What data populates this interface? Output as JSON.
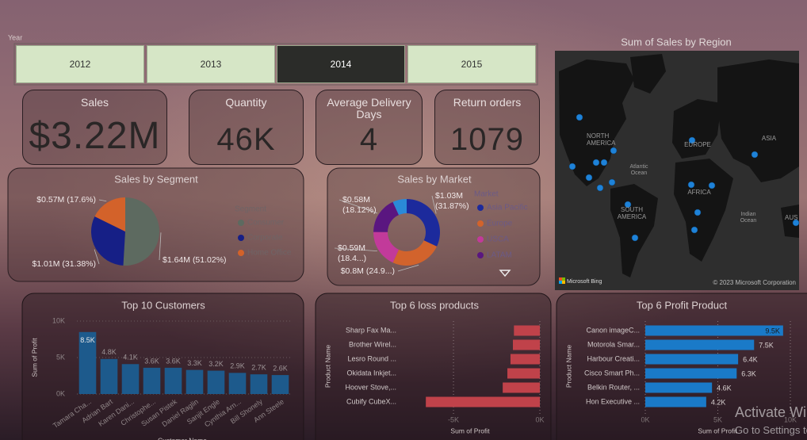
{
  "slicer": {
    "label": "Year",
    "options": [
      "2012",
      "2013",
      "2014",
      "2015"
    ],
    "selected": "2014"
  },
  "cards": [
    {
      "title": "Sales",
      "value": "$3.22M"
    },
    {
      "title": "Quantity",
      "value": "46K"
    },
    {
      "title": "Average Delivery Days",
      "value": "4"
    },
    {
      "title": "Return orders",
      "value": "1079"
    }
  ],
  "map": {
    "title": "Sum of Sales by Region",
    "labels": [
      [
        "NORTH",
        "AMERICA"
      ],
      [
        "Atlantic",
        "Ocean"
      ],
      [
        "EUROPE"
      ],
      [
        "ASIA"
      ],
      [
        "AFRICA"
      ],
      [
        "SOUTH",
        "AMERICA"
      ],
      [
        "Indian",
        "Ocean"
      ],
      [
        "AUS"
      ]
    ],
    "attribution": "Microsoft Bing",
    "copyright": "© 2023 Microsoft Corporation"
  },
  "chart_data": [
    {
      "type": "pie",
      "title": "Sales by Segment",
      "legend_title": "Segment",
      "categories": [
        "Consumer",
        "Corporate",
        "Home Office"
      ],
      "values": [
        1640000,
        1010000,
        570000
      ],
      "value_labels": [
        [
          "$1.64M (51.02%)"
        ],
        [
          "$1.01M (31.38%)"
        ],
        [
          "$0.57M (17.6%)"
        ]
      ],
      "colors": [
        "#5d6a60",
        "#161f86",
        "#d3622a"
      ],
      "hole": false
    },
    {
      "type": "pie",
      "title": "Sales by Market",
      "legend_title": "Market",
      "categories": [
        "Asia Pacific",
        "Europe",
        "USCA",
        "LATAM",
        null
      ],
      "values": [
        1030000,
        800000,
        590000,
        580000,
        220000
      ],
      "value_labels": [
        [
          "$1.03M",
          "(31.87%)"
        ],
        [
          "$0.8M (24.9...)"
        ],
        [
          "$0.59M",
          "(18.4...)"
        ],
        [
          "$0.58M",
          "(18.12%)"
        ],
        null
      ],
      "colors": [
        "#1c2a9c",
        "#d2632c",
        "#c23a9a",
        "#5a1680",
        "#2a8ad8"
      ],
      "hole": true
    },
    {
      "type": "bar",
      "title": "Top 10 Customers",
      "x_label": "Customer Name",
      "y_label": "Sum of Profit",
      "categories": [
        "Tamara Cha...",
        "Adrian Bart",
        "Karen Dani...",
        "Christophe...",
        "Susan Pistek",
        "Daniel Raglin",
        "Sanjit Engle",
        "Cynthia Arn...",
        "Bill Shonely",
        "Ann Steele"
      ],
      "values": [
        8500,
        4800,
        4100,
        3600,
        3600,
        3300,
        3200,
        2900,
        2700,
        2600
      ],
      "value_labels": [
        "8.5K",
        "4.8K",
        "4.1K",
        "3.6K",
        "3.6K",
        "3.3K",
        "3.2K",
        "2.9K",
        "2.7K",
        "2.6K"
      ],
      "color": "#1d5a8c",
      "ylim": [
        0,
        10000
      ],
      "yticks": [
        {
          "value": 0,
          "label": "0K"
        },
        {
          "value": 5000,
          "label": "5K"
        },
        {
          "value": 10000,
          "label": "10K"
        }
      ],
      "grid": true
    },
    {
      "type": "barh",
      "title": "Top 6 loss products",
      "x_label": "Sum of Profit",
      "y_label": "Product Name",
      "categories": [
        "Sharp Fax Ma...",
        "Brother Wirel...",
        "Lesro Round ...",
        "Okidata Inkjet...",
        "Hoover Stove,...",
        "Cubify CubeX..."
      ],
      "values": [
        -1500,
        -1560,
        -1700,
        -1880,
        -2150,
        -6600
      ],
      "color": "#c0424a",
      "xlim": [
        -6700,
        0
      ],
      "xticks": [
        {
          "value": -5000,
          "label": "-5K"
        },
        {
          "value": 0,
          "label": "0K"
        }
      ],
      "grid": true
    },
    {
      "type": "barh",
      "title": "Top 6 Profit Product",
      "x_label": "Sum of Profit",
      "y_label": "Product Name",
      "categories": [
        "Canon imageC...",
        "Motorola Smar...",
        "Harbour Creati...",
        "Cisco Smart Ph...",
        "Belkin Router, ...",
        "Hon Executive ..."
      ],
      "values": [
        9500,
        7500,
        6400,
        6300,
        4600,
        4200
      ],
      "value_labels": [
        "9.5K",
        "7.5K",
        "6.4K",
        "6.3K",
        "4.6K",
        "4.2K"
      ],
      "color": "#1a7ac8",
      "xlim": [
        0,
        10000
      ],
      "xticks": [
        {
          "value": 0,
          "label": "0K"
        },
        {
          "value": 5000,
          "label": "5K"
        },
        {
          "value": 10000,
          "label": "10K"
        }
      ],
      "grid": true
    }
  ],
  "watermark": {
    "title": "Activate Windows",
    "text": "Go to Settings to activate Windows."
  }
}
